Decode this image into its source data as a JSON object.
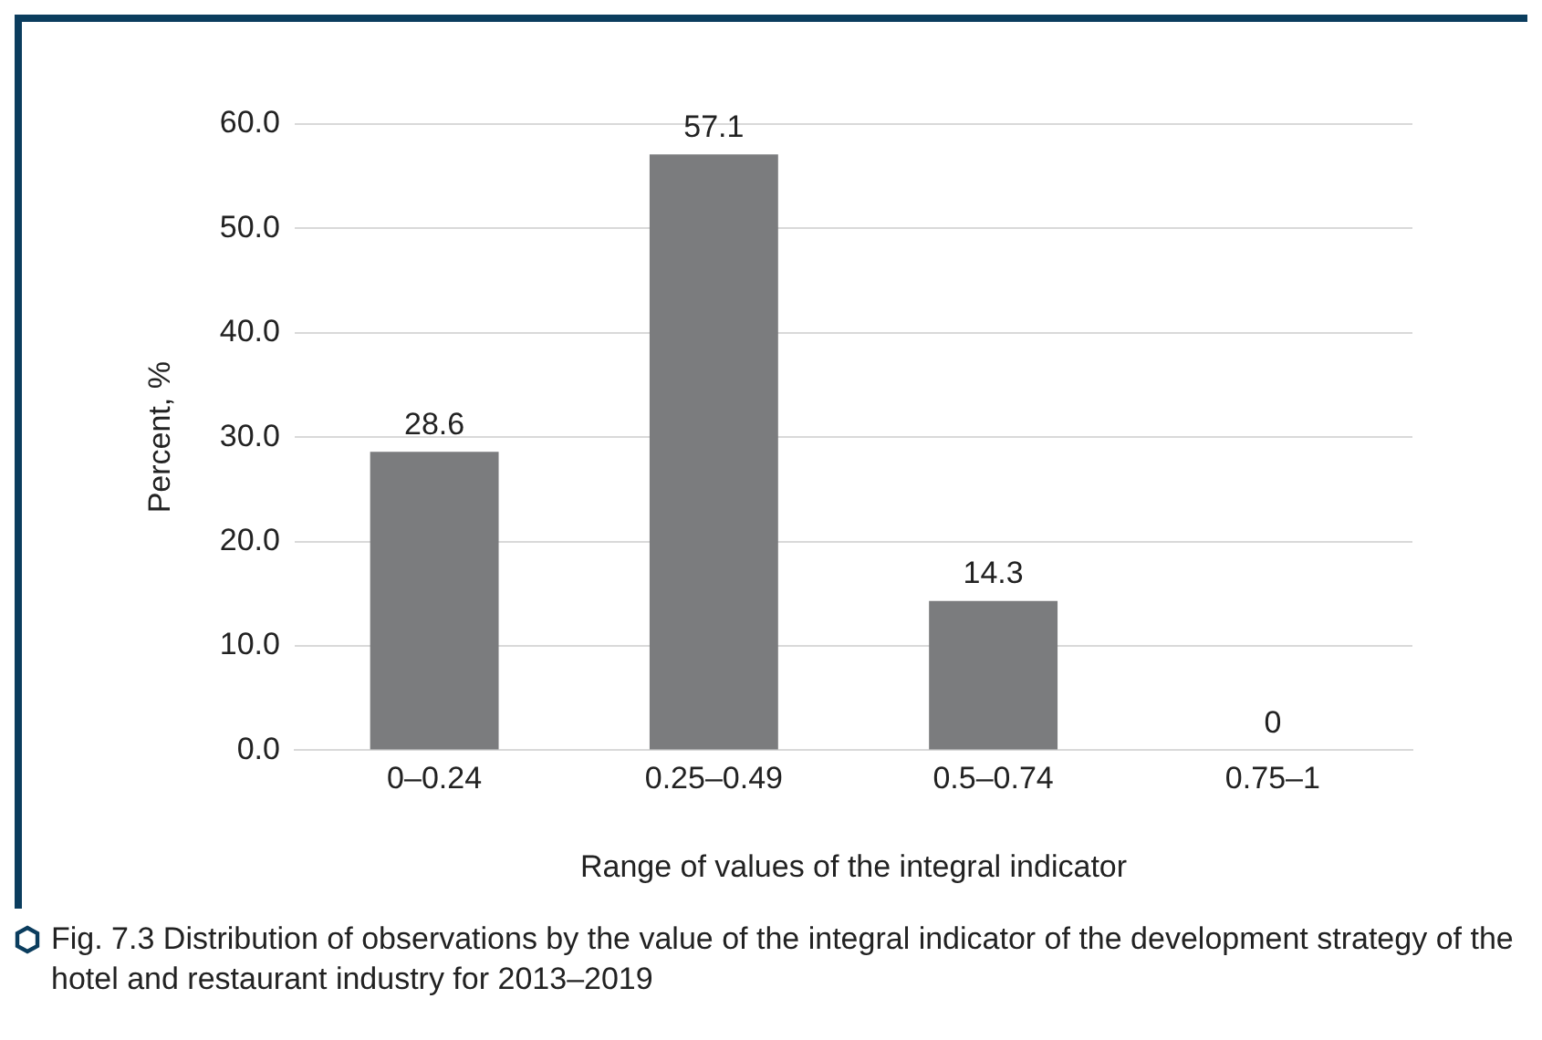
{
  "chart_data": {
    "type": "bar",
    "categories": [
      "0–0.24",
      "0.25–0.49",
      "0.5–0.74",
      "0.75–1"
    ],
    "values": [
      28.6,
      57.1,
      14.3,
      0
    ],
    "color": "#7b7c7e",
    "xlabel": "Range of values of the integral indicator",
    "ylabel": "Percent, %",
    "ylim": [
      0,
      60
    ],
    "yticks": [
      {
        "value": 0,
        "label": "0.0"
      },
      {
        "value": 10,
        "label": "10.0"
      },
      {
        "value": 20,
        "label": "20.0"
      },
      {
        "value": 30,
        "label": "30.0"
      },
      {
        "value": 40,
        "label": "40.0"
      },
      {
        "value": 50,
        "label": "50.0"
      },
      {
        "value": 60,
        "label": "60.0"
      }
    ],
    "grid": "y",
    "legend": false,
    "data_labels": true,
    "annotations": [
      "Fig. 7.3 Distribution of observations by the value of the integral indicator of the development strategy of the hotel and restaurant industry for 2013–2019"
    ]
  }
}
